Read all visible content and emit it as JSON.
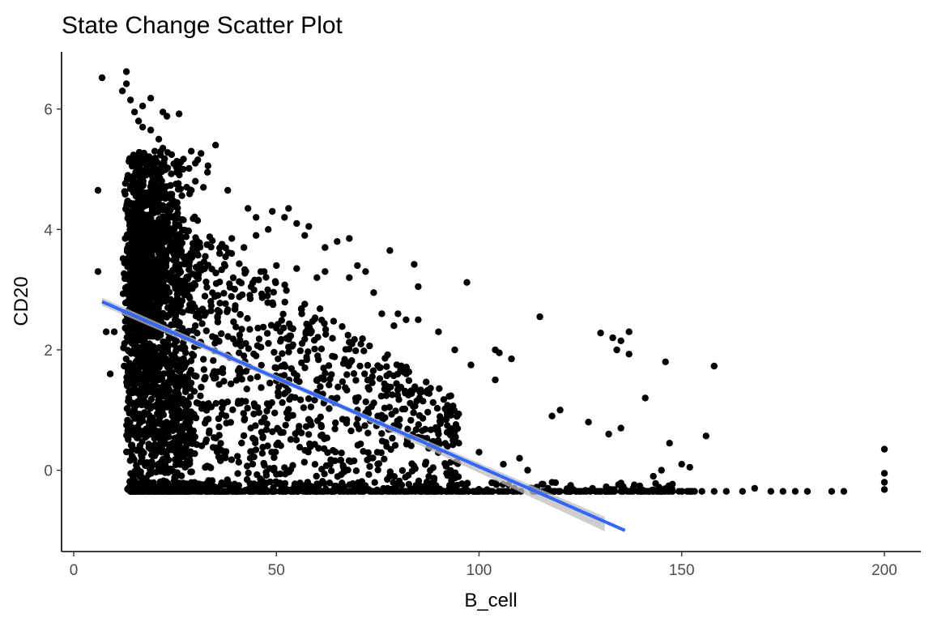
{
  "chart_data": {
    "type": "scatter",
    "title": "State Change Scatter Plot",
    "xlabel": "B_cell",
    "ylabel": "CD20",
    "xlim": [
      -3,
      209
    ],
    "ylim": [
      -1.35,
      6.95
    ],
    "x_ticks": [
      0,
      50,
      100,
      150,
      200
    ],
    "y_ticks": [
      0,
      2,
      4,
      6
    ],
    "x_tick_labels": [
      "0",
      "50",
      "100",
      "150",
      "200"
    ],
    "y_tick_labels": [
      "0",
      "2",
      "4",
      "6"
    ],
    "grid": false,
    "point_color": "#000000",
    "floor_value": -0.35,
    "trend": {
      "method": "linear",
      "color": "#3366FF",
      "ribbon_color": "#bdbdbd",
      "x": [
        7,
        136
      ],
      "y": [
        2.8,
        -1.0
      ]
    },
    "points": [
      [
        7,
        6.52
      ],
      [
        13,
        6.62
      ],
      [
        13,
        6.42
      ],
      [
        12,
        6.3
      ],
      [
        14,
        6.15
      ],
      [
        17,
        6.05
      ],
      [
        19,
        6.18
      ],
      [
        15,
        5.95
      ],
      [
        22,
        5.95
      ],
      [
        23,
        5.88
      ],
      [
        26,
        5.92
      ],
      [
        16,
        5.8
      ],
      [
        17,
        5.7
      ],
      [
        19,
        5.65
      ],
      [
        21,
        5.5
      ],
      [
        20,
        5.3
      ],
      [
        22,
        5.35
      ],
      [
        29,
        5.3
      ],
      [
        30,
        5.1
      ],
      [
        27,
        5.0
      ],
      [
        35,
        5.4
      ],
      [
        33,
        4.95
      ],
      [
        30,
        4.8
      ],
      [
        32,
        4.7
      ],
      [
        29,
        4.65
      ],
      [
        38,
        4.65
      ],
      [
        43,
        4.35
      ],
      [
        45,
        4.2
      ],
      [
        49,
        4.3
      ],
      [
        53,
        4.35
      ],
      [
        52,
        4.2
      ],
      [
        55,
        4.1
      ],
      [
        57,
        3.9
      ],
      [
        58,
        4.05
      ],
      [
        48,
        4.0
      ],
      [
        45,
        3.9
      ],
      [
        42,
        3.7
      ],
      [
        36,
        3.6
      ],
      [
        39,
        3.85
      ],
      [
        62,
        3.7
      ],
      [
        65,
        3.8
      ],
      [
        68,
        3.85
      ],
      [
        70,
        3.4
      ],
      [
        68,
        3.2
      ],
      [
        62,
        3.3
      ],
      [
        60,
        3.2
      ],
      [
        55,
        3.35
      ],
      [
        50,
        3.4
      ],
      [
        47,
        3.3
      ],
      [
        72,
        3.3
      ],
      [
        78,
        3.65
      ],
      [
        84,
        3.42
      ],
      [
        85,
        3.05
      ],
      [
        97,
        3.12
      ],
      [
        74,
        2.95
      ],
      [
        80,
        2.6
      ],
      [
        82,
        2.5
      ],
      [
        76,
        2.6
      ],
      [
        79,
        2.4
      ],
      [
        85,
        2.5
      ],
      [
        90,
        2.3
      ],
      [
        94,
        2.0
      ],
      [
        98,
        1.75
      ],
      [
        104,
        2.0
      ],
      [
        105,
        1.95
      ],
      [
        108,
        1.85
      ],
      [
        104,
        1.5
      ],
      [
        115,
        2.55
      ],
      [
        130,
        2.28
      ],
      [
        133,
        2.2
      ],
      [
        135,
        2.15
      ],
      [
        137,
        2.3
      ],
      [
        134,
        2.0
      ],
      [
        137,
        1.93
      ],
      [
        146,
        1.8
      ],
      [
        158,
        1.73
      ],
      [
        141,
        1.2
      ],
      [
        120,
        1.0
      ],
      [
        118,
        0.9
      ],
      [
        127,
        0.8
      ],
      [
        135,
        0.7
      ],
      [
        132,
        0.6
      ],
      [
        147,
        0.45
      ],
      [
        156,
        0.57
      ],
      [
        150,
        0.1
      ],
      [
        152,
        0.05
      ],
      [
        145,
        0.0
      ],
      [
        143,
        -0.1
      ],
      [
        110,
        0.2
      ],
      [
        106,
        0.1
      ],
      [
        112,
        0.0
      ],
      [
        100,
        0.3
      ],
      [
        95,
        0.45
      ],
      [
        90,
        0.6
      ],
      [
        85,
        0.55
      ],
      [
        80,
        0.7
      ],
      [
        75,
        0.9
      ],
      [
        70,
        1.0
      ],
      [
        65,
        1.2
      ],
      [
        60,
        1.3
      ],
      [
        55,
        1.5
      ],
      [
        50,
        1.7
      ],
      [
        45,
        1.9
      ],
      [
        40,
        2.1
      ],
      [
        35,
        2.2
      ],
      [
        30,
        2.4
      ],
      [
        25,
        2.5
      ],
      [
        20,
        2.7
      ],
      [
        15,
        2.9
      ],
      [
        10,
        2.3
      ],
      [
        8,
        2.3
      ],
      [
        9,
        1.6
      ],
      [
        6,
        3.3
      ],
      [
        6,
        4.65
      ],
      [
        200,
        0.35
      ],
      [
        200,
        -0.05
      ],
      [
        200,
        -0.2
      ],
      [
        200,
        -0.32
      ],
      [
        187,
        -0.35
      ],
      [
        190,
        -0.35
      ],
      [
        181,
        -0.35
      ],
      [
        178,
        -0.35
      ],
      [
        175,
        -0.35
      ],
      [
        172,
        -0.35
      ],
      [
        168,
        -0.3
      ],
      [
        165,
        -0.35
      ],
      [
        161,
        -0.35
      ],
      [
        158,
        -0.35
      ],
      [
        155,
        -0.35
      ],
      [
        150,
        -0.35
      ],
      [
        147,
        -0.35
      ],
      [
        143,
        -0.35
      ],
      [
        140,
        -0.35
      ],
      [
        138,
        -0.3
      ],
      [
        135,
        -0.35
      ],
      [
        132,
        -0.35
      ],
      [
        128,
        -0.3
      ],
      [
        124,
        -0.35
      ],
      [
        120,
        -0.35
      ],
      [
        117,
        -0.3
      ],
      [
        114,
        -0.35
      ]
    ]
  }
}
